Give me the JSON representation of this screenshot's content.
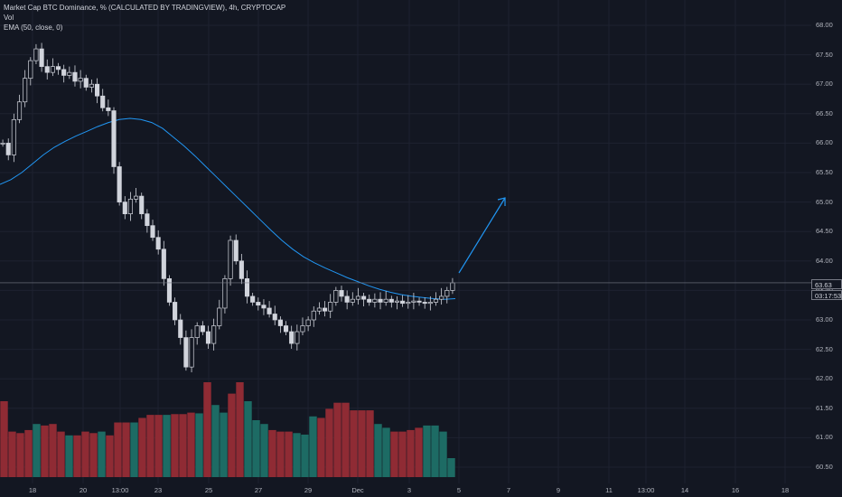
{
  "legend": {
    "symbol_line": "Market Cap BTC Dominance, % (CALCULATED BY TRADINGVIEW), 4h, CRYPTOCAP",
    "vol_label": "Vol",
    "ema_label": "EMA (50, close, 0)"
  },
  "price_axis": {
    "ticks": [
      "68.00",
      "67.50",
      "67.00",
      "66.50",
      "66.00",
      "65.50",
      "65.00",
      "64.50",
      "64.00",
      "63.50",
      "63.00",
      "62.50",
      "62.00",
      "61.50",
      "61.00",
      "60.50"
    ],
    "last_price": "63.63",
    "countdown": "03:17:53"
  },
  "time_axis": {
    "ticks": [
      "18",
      "20",
      "13:00",
      "23",
      "25",
      "27",
      "29",
      "Dec",
      "3",
      "5",
      "7",
      "9",
      "11",
      "13:00",
      "14",
      "16",
      "18"
    ]
  },
  "colors": {
    "background": "#131722",
    "grid": "#1e2230",
    "candle_up": "#d1d4dc",
    "candle_down": "#d1d4dc",
    "ema": "#2196f3",
    "vol_up": "#1d6b64",
    "vol_down": "#8f2b34",
    "arrow": "#2196f3",
    "price_line": "#787b86"
  },
  "chart_data": {
    "type": "candlestick",
    "title": "Market Cap BTC Dominance, % (CALCULATED BY TRADINGVIEW), 4h, CRYPTOCAP",
    "ylabel": "%",
    "ylim": [
      60.4,
      68.15
    ],
    "grid": true,
    "x_tick_labels": [
      "18",
      "20",
      "13:00",
      "23",
      "25",
      "27",
      "29",
      "Dec",
      "3",
      "5",
      "7",
      "9",
      "11",
      "13:00",
      "14",
      "16",
      "18"
    ],
    "closes": [
      66.0,
      65.8,
      66.4,
      66.7,
      67.1,
      67.4,
      67.6,
      67.3,
      67.2,
      67.3,
      67.25,
      67.15,
      67.2,
      67.05,
      67.1,
      66.95,
      67.0,
      66.8,
      66.6,
      66.55,
      65.6,
      65.0,
      64.8,
      65.05,
      65.1,
      64.8,
      64.6,
      64.4,
      64.2,
      63.7,
      63.3,
      63.0,
      62.7,
      62.2,
      62.7,
      62.9,
      62.8,
      62.6,
      62.9,
      63.2,
      63.7,
      64.35,
      64.0,
      63.7,
      63.4,
      63.3,
      63.25,
      63.2,
      63.1,
      63.0,
      62.9,
      62.8,
      62.6,
      62.8,
      62.9,
      63.0,
      63.15,
      63.2,
      63.15,
      63.3,
      63.5,
      63.4,
      63.3,
      63.35,
      63.4,
      63.35,
      63.3,
      63.35,
      63.3,
      63.35,
      63.3,
      63.32,
      63.28,
      63.3,
      63.32,
      63.3,
      63.28,
      63.3,
      63.35,
      63.4,
      63.5,
      63.63
    ],
    "ema_50": [
      65.3,
      65.38,
      65.5,
      65.65,
      65.8,
      65.93,
      66.03,
      66.12,
      66.2,
      66.28,
      66.35,
      66.4,
      66.42,
      66.4,
      66.35,
      66.25,
      66.1,
      65.95,
      65.78,
      65.6,
      65.42,
      65.24,
      65.06,
      64.88,
      64.7,
      64.52,
      64.35,
      64.2,
      64.07,
      63.97,
      63.88,
      63.8,
      63.72,
      63.65,
      63.58,
      63.52,
      63.47,
      63.43,
      63.4,
      63.38,
      63.36,
      63.35,
      63.36
    ],
    "volume_relative": [
      1.0,
      0.6,
      0.58,
      0.62,
      0.7,
      0.68,
      0.7,
      0.6,
      0.55,
      0.55,
      0.6,
      0.58,
      0.6,
      0.55,
      0.72,
      0.72,
      0.72,
      0.78,
      0.82,
      0.82,
      0.82,
      0.83,
      0.83,
      0.85,
      0.84,
      1.25,
      0.95,
      0.85,
      1.1,
      1.25,
      1.0,
      0.75,
      0.7,
      0.62,
      0.6,
      0.6,
      0.58,
      0.56,
      0.8,
      0.78,
      0.9,
      0.98,
      0.98,
      0.88,
      0.88,
      0.88,
      0.7,
      0.65,
      0.6,
      0.6,
      0.62,
      0.65,
      0.68,
      0.68,
      0.6,
      0.25
    ],
    "last_value": 63.63,
    "annotation": "projected upward arrow toward ~65.1 near Dec 7"
  }
}
